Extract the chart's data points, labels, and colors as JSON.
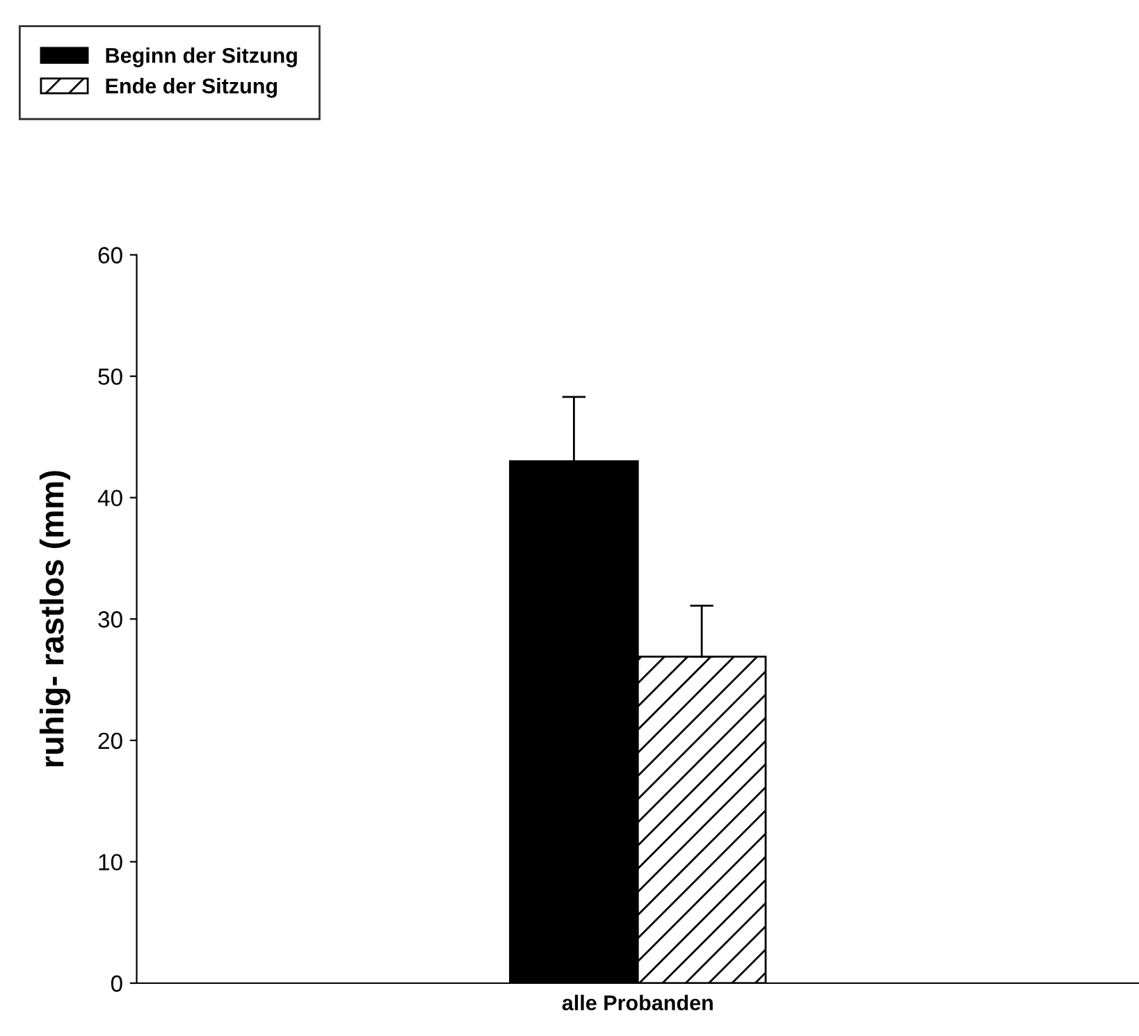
{
  "chart_data": {
    "type": "bar",
    "ylabel": "ruhig- rastlos (mm)",
    "categories": [
      "alle Probanden"
    ],
    "series": [
      {
        "name": "Beginn der Sitzung",
        "color": "#000000",
        "values": [
          43.0
        ],
        "errors": [
          [
            43.0,
            48.3
          ]
        ]
      },
      {
        "name": "Ende der Sitzung",
        "color": "#000000",
        "values": [
          26.9
        ],
        "errors": [
          [
            26.9,
            31.1
          ]
        ]
      }
    ],
    "ylim": [
      0,
      60
    ],
    "yticks": [
      0,
      10,
      20,
      30,
      40,
      50,
      60
    ],
    "grid": false,
    "legend": "top left"
  }
}
